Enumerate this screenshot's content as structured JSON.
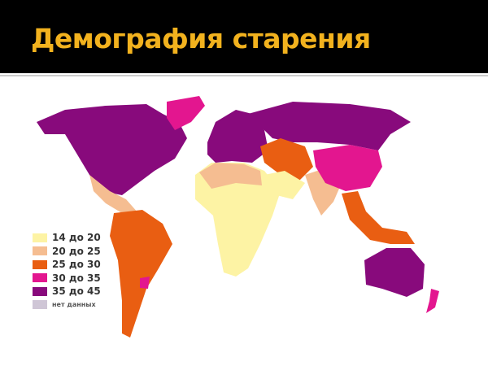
{
  "title": "Демография старения",
  "legend": [
    {
      "label": "14 до 20",
      "color": "#fdf3a4"
    },
    {
      "label": "20 до 25",
      "color": "#f5bd91"
    },
    {
      "label": "25 до 30",
      "color": "#e95e12"
    },
    {
      "label": "30 до 35",
      "color": "#e3168f"
    },
    {
      "label": "35 до 45",
      "color": "#880a7c"
    },
    {
      "label": "нет данных",
      "color": "#cfc6d6"
    }
  ]
}
